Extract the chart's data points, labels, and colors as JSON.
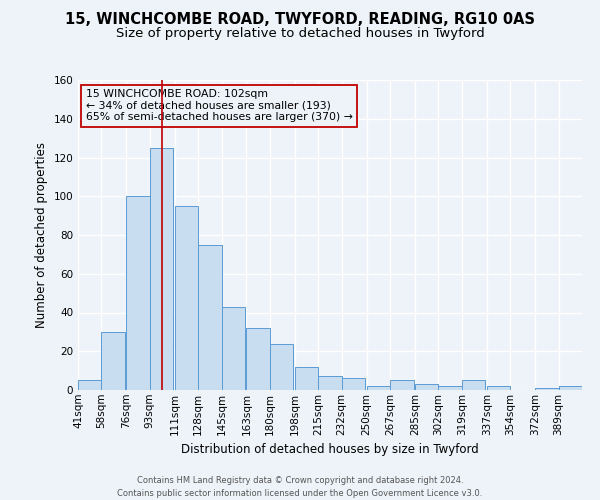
{
  "title_line1": "15, WINCHCOMBE ROAD, TWYFORD, READING, RG10 0AS",
  "title_line2": "Size of property relative to detached houses in Twyford",
  "xlabel": "Distribution of detached houses by size in Twyford",
  "ylabel": "Number of detached properties",
  "bin_labels": [
    "41sqm",
    "58sqm",
    "76sqm",
    "93sqm",
    "111sqm",
    "128sqm",
    "145sqm",
    "163sqm",
    "180sqm",
    "198sqm",
    "215sqm",
    "232sqm",
    "250sqm",
    "267sqm",
    "285sqm",
    "302sqm",
    "319sqm",
    "337sqm",
    "354sqm",
    "372sqm",
    "389sqm"
  ],
  "bin_edges": [
    41,
    58,
    76,
    93,
    111,
    128,
    145,
    163,
    180,
    198,
    215,
    232,
    250,
    267,
    285,
    302,
    319,
    337,
    354,
    372,
    389
  ],
  "bar_values": [
    5,
    30,
    100,
    125,
    95,
    75,
    43,
    32,
    24,
    12,
    7,
    6,
    2,
    5,
    3,
    2,
    5,
    2,
    0,
    1,
    2
  ],
  "bar_fill_color": "#c9ddf0",
  "bar_edge_color": "#5b9bd5",
  "vline_x": 102,
  "vline_color": "#c00000",
  "annotation_line1": "15 WINCHCOMBE ROAD: 102sqm",
  "annotation_line2": "← 34% of detached houses are smaller (193)",
  "annotation_line3": "65% of semi-detached houses are larger (370) →",
  "annotation_box_color": "#c00000",
  "ylim": [
    0,
    160
  ],
  "yticks": [
    0,
    20,
    40,
    60,
    80,
    100,
    120,
    140,
    160
  ],
  "footer_line1": "Contains HM Land Registry data © Crown copyright and database right 2024.",
  "footer_line2": "Contains public sector information licensed under the Open Government Licence v3.0.",
  "background_color": "#eef3f9",
  "grid_color": "#ffffff",
  "title_fontsize": 10.5,
  "subtitle_fontsize": 9.5,
  "axis_label_fontsize": 8.5,
  "tick_fontsize": 7.5,
  "annotation_fontsize": 7.8,
  "footer_fontsize": 6.0
}
